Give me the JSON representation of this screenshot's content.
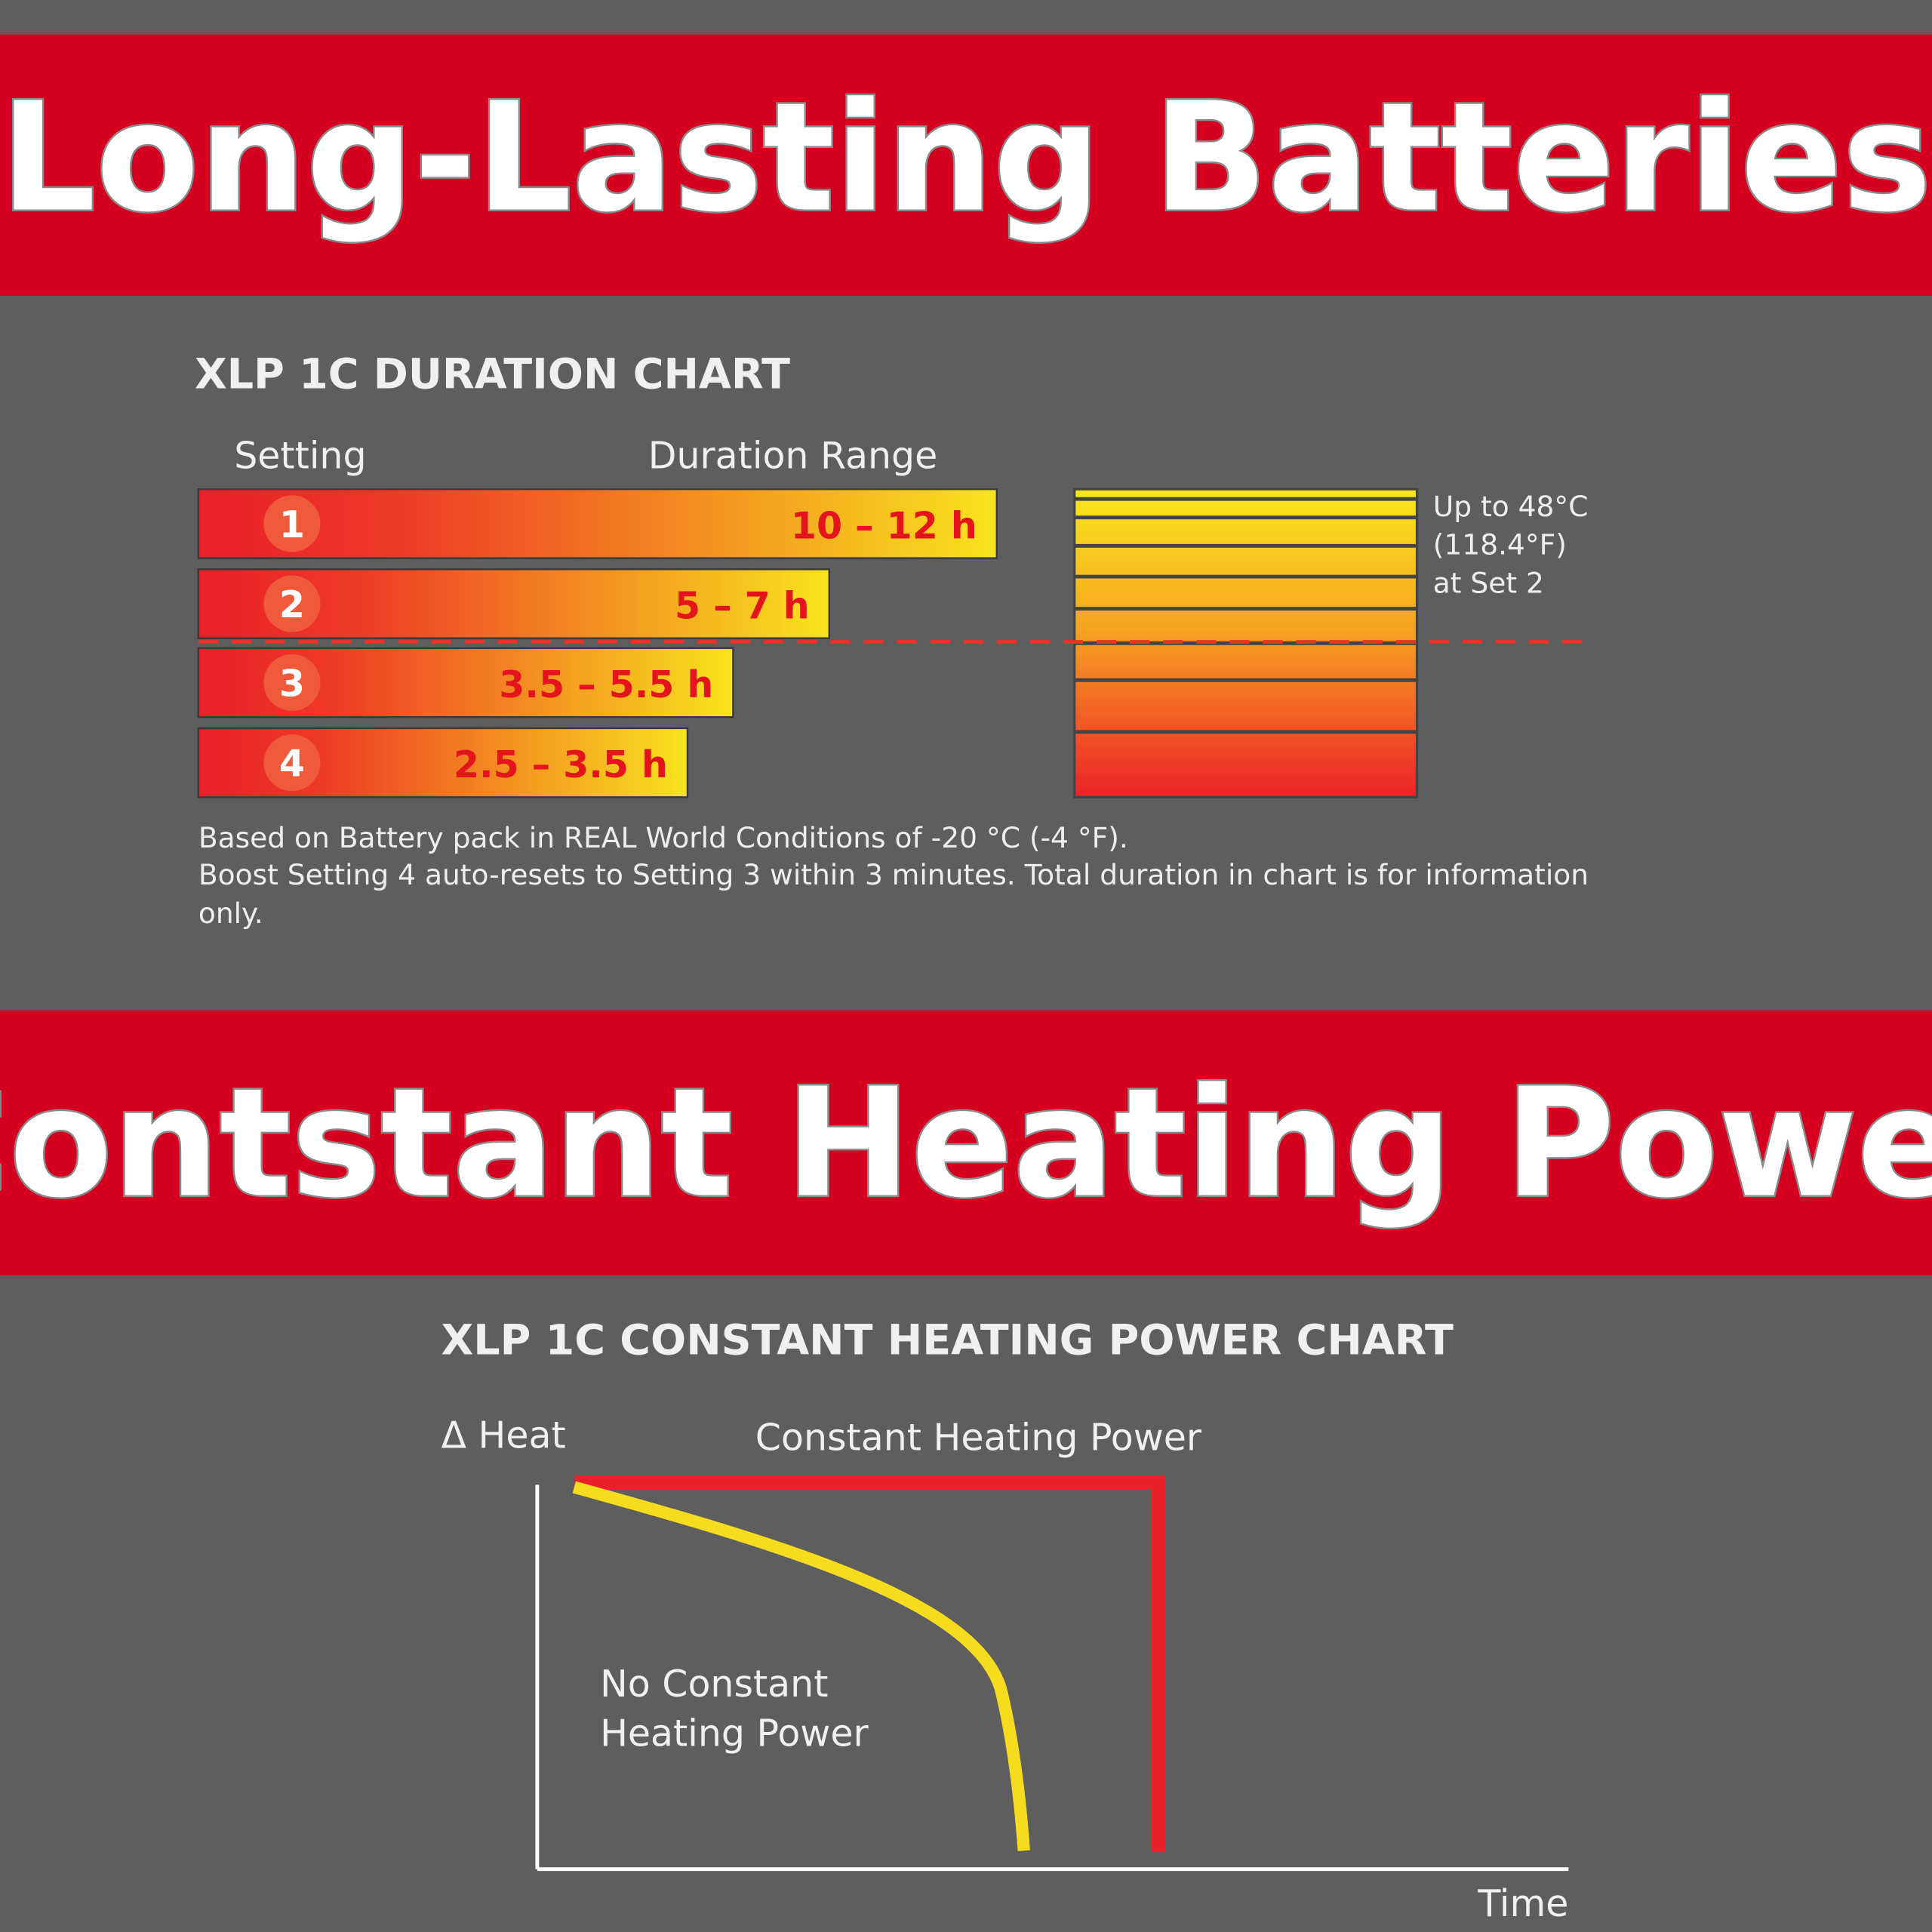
{
  "banners": [
    "Long-Lasting Batteries",
    "Contstant Heating Power"
  ],
  "duration_chart": {
    "title": "XLP 1C DURATION CHART",
    "headers": [
      "Setting",
      "Duration Range"
    ],
    "rows": [
      {
        "setting": "1",
        "duration": "10 – 12 h"
      },
      {
        "setting": "2",
        "duration": "5 – 7 h"
      },
      {
        "setting": "3",
        "duration": "3.5 – 5.5 h"
      },
      {
        "setting": "4",
        "duration": "2.5 – 3.5 h"
      }
    ],
    "temperature_note": [
      "Up to 48°C",
      "(118.4°F)",
      "at Set 2"
    ],
    "footnote": [
      "Based on Battery pack in REAL World Conditions of -20 °C (-4 °F).",
      "Boost Setting 4 auto-resets to Setting 3 within 3 minutes. Total duration in chart is for information",
      "only."
    ]
  },
  "power_chart": {
    "title": "XLP 1C CONSTANT HEATING POWER CHART",
    "y_axis": "Δ Heat",
    "x_axis": "Time",
    "constant_label": "Constant Heating Power",
    "non_constant_label": [
      "No Constant",
      "Heating Power"
    ]
  }
}
